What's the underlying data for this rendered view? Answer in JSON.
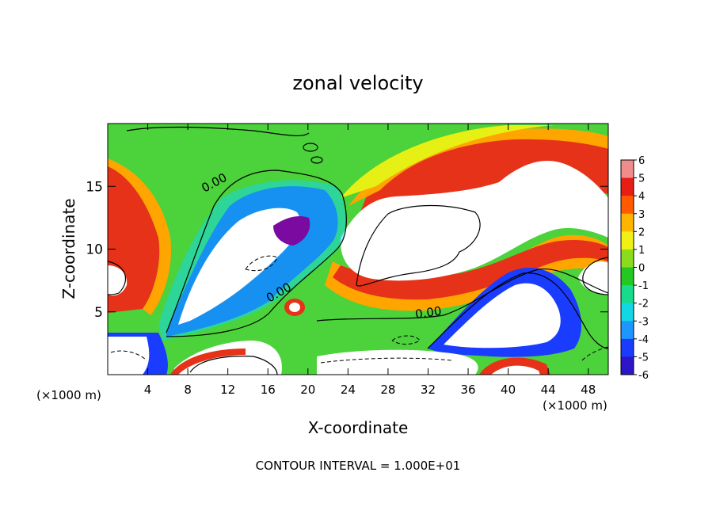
{
  "chart_data": {
    "type": "heatmap",
    "title": "zonal velocity",
    "xlabel": "X-coordinate",
    "ylabel": "Z-coordinate",
    "x_unit": "(×1000 m)",
    "y_unit": "(×1000 m)",
    "xlim": [
      0,
      50
    ],
    "ylim": [
      0,
      20
    ],
    "x_ticks": [
      4,
      8,
      12,
      16,
      20,
      24,
      28,
      32,
      36,
      40,
      44,
      48
    ],
    "y_ticks": [
      5,
      10,
      15
    ],
    "colorbar_ticks": [
      6,
      5,
      4,
      3,
      2,
      1,
      0,
      -1,
      -2,
      -3,
      -4,
      -5,
      -6
    ],
    "colorbar_range": [
      -6,
      6
    ],
    "contour_labels": [
      "0.00",
      "0.00",
      "0.00"
    ],
    "footer": "CONTOUR INTERVAL = 1.000E+01"
  },
  "colors": {
    "scale": [
      "#7a0aa0",
      "#2d15c8",
      "#1a3cff",
      "#1e96ff",
      "#14d7e6",
      "#16dc8c",
      "#23c823",
      "#8cdc1e",
      "#f0f014",
      "#ffb400",
      "#ff5a00",
      "#e61e14",
      "#f08c8c"
    ],
    "zero_region": "#ffffff"
  }
}
